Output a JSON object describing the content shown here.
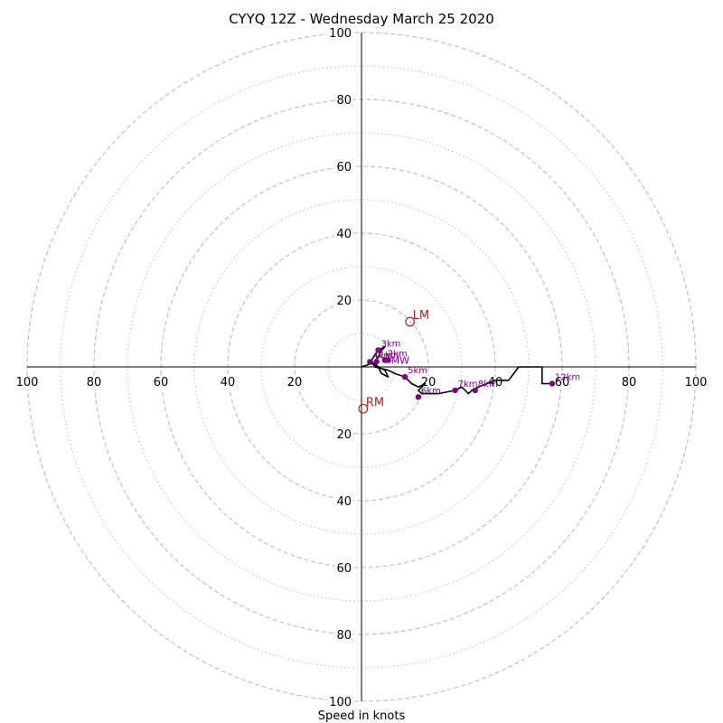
{
  "chart_data": {
    "type": "hodograph",
    "title": "CYYQ 12Z - Wednesday March 25 2020",
    "xlabel": "Speed in knots",
    "axis_range": [
      -100,
      100
    ],
    "rings_major": [
      20,
      40,
      60,
      80,
      100
    ],
    "rings_minor": [
      10,
      30,
      50,
      70,
      90
    ],
    "tick_labels": {
      "right": [
        "20",
        "40",
        "60",
        "80",
        "100"
      ],
      "left": [
        "100",
        "80",
        "60",
        "40",
        "20"
      ],
      "up": [
        "20",
        "40",
        "60",
        "80",
        "100"
      ],
      "down": [
        "20",
        "40",
        "60",
        "80",
        "100"
      ]
    },
    "hodograph_line": [
      [
        0,
        0
      ],
      [
        3,
        1
      ],
      [
        5,
        0
      ],
      [
        6,
        -2
      ],
      [
        8,
        -3
      ],
      [
        7,
        -1
      ],
      [
        5,
        0
      ],
      [
        4,
        1
      ],
      [
        5,
        3
      ],
      [
        6,
        5
      ],
      [
        7,
        6
      ],
      [
        5,
        5
      ],
      [
        3,
        2
      ],
      [
        4,
        0
      ],
      [
        8,
        -1
      ],
      [
        10,
        -2
      ],
      [
        13,
        -3
      ],
      [
        15,
        -5
      ],
      [
        17,
        -6
      ],
      [
        19,
        -5
      ],
      [
        17,
        -7
      ],
      [
        18,
        -8
      ],
      [
        23,
        -8
      ],
      [
        28,
        -7
      ],
      [
        30,
        -6
      ],
      [
        32,
        -8
      ],
      [
        33,
        -7
      ],
      [
        35,
        -6
      ],
      [
        40,
        -4
      ],
      [
        44,
        -4
      ],
      [
        47,
        0
      ],
      [
        54,
        0
      ],
      [
        54,
        -5
      ],
      [
        57,
        -5
      ]
    ],
    "height_markers": [
      {
        "label": "1km",
        "u": 4.5,
        "v": 1.6
      },
      {
        "label": "2km",
        "u": 7,
        "v": 2
      },
      {
        "label": "3km",
        "u": 5,
        "v": 5
      },
      {
        "label": "4km",
        "u": 2.5,
        "v": 1.5
      },
      {
        "label": "5km",
        "u": 13,
        "v": -3
      },
      {
        "label": "6km",
        "u": 17,
        "v": -9
      },
      {
        "label": "7km",
        "u": 28,
        "v": -7
      },
      {
        "label": "8km",
        "u": 34,
        "v": -7
      },
      {
        "label": "12km",
        "u": 57,
        "v": -5
      }
    ],
    "mean_wind": {
      "label": "MW",
      "u": 8,
      "v": 2
    },
    "storm_motion": [
      {
        "label": "LM",
        "u": 14.5,
        "v": 13.5
      },
      {
        "label": "RM",
        "u": 0.5,
        "v": -12.5
      }
    ],
    "colors": {
      "hodograph": "#000000",
      "markers": "#800080",
      "storm_motion": "#b22222",
      "rings": "#bbbbbb",
      "axes": "#000000"
    },
    "grid": true
  }
}
